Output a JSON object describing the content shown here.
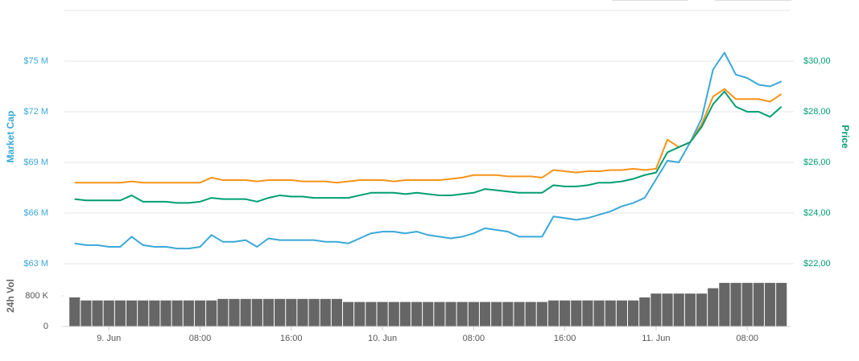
{
  "chart_data": {
    "type": "line",
    "ylabel": "Market Cap",
    "y2label": "Price",
    "x": [
      -3,
      -2,
      -1,
      0,
      1,
      2,
      3,
      4,
      5,
      6,
      7,
      8,
      9,
      10,
      11,
      12,
      13,
      14,
      15,
      16,
      17,
      18,
      19,
      20,
      21,
      22,
      23,
      24,
      25,
      26,
      27,
      28,
      29,
      30,
      31,
      32,
      33,
      34,
      35,
      36,
      37,
      38,
      39,
      40,
      41,
      42,
      43,
      44,
      45,
      46,
      47,
      48,
      49,
      50,
      51,
      52,
      53,
      54,
      55,
      56,
      57,
      58,
      59
    ],
    "xlim": [
      -3.9,
      59.8
    ],
    "xticks": [
      {
        "value": 0,
        "label": "9. Jun"
      },
      {
        "value": 8,
        "label": "08:00"
      },
      {
        "value": 16,
        "label": "16:00"
      },
      {
        "value": 24,
        "label": "10. Jun"
      },
      {
        "value": 32,
        "label": "08:00"
      },
      {
        "value": 40,
        "label": "16:00"
      },
      {
        "value": 48,
        "label": "11. Jun"
      },
      {
        "value": 56,
        "label": "08:00"
      }
    ],
    "ylim": [
      63,
      78
    ],
    "yticks": [
      {
        "value": 63,
        "label": "$63 M"
      },
      {
        "value": 66,
        "label": "$66 M"
      },
      {
        "value": 69,
        "label": "$69 M"
      },
      {
        "value": 72,
        "label": "$72 M"
      },
      {
        "value": 75,
        "label": "$75 M"
      }
    ],
    "y2lim": [
      22,
      32
    ],
    "y2ticks": [
      {
        "value": 22,
        "label": "$22,00"
      },
      {
        "value": 24,
        "label": "$24,00"
      },
      {
        "value": 26,
        "label": "$26,00"
      },
      {
        "value": 28,
        "label": "$28,00"
      },
      {
        "value": 30,
        "label": "$30,00"
      }
    ],
    "grid": true,
    "series": [
      {
        "color": "#3aa8d8",
        "axis": "y",
        "values": [
          64.2,
          64.1,
          64.1,
          64.0,
          64.0,
          64.6,
          64.1,
          64.0,
          64.0,
          63.9,
          63.9,
          64.0,
          64.7,
          64.3,
          64.3,
          64.4,
          64.0,
          64.5,
          64.4,
          64.4,
          64.4,
          64.4,
          64.3,
          64.3,
          64.2,
          64.5,
          64.8,
          64.9,
          64.9,
          64.8,
          64.9,
          64.7,
          64.6,
          64.5,
          64.6,
          64.8,
          65.1,
          65.0,
          64.9,
          64.6,
          64.6,
          64.6,
          65.8,
          65.7,
          65.6,
          65.7,
          65.9,
          66.1,
          66.4,
          66.6,
          66.9,
          68.0,
          69.1,
          69.0,
          70.2,
          71.6,
          74.5,
          75.5,
          74.2,
          74.0,
          73.6,
          73.5,
          73.8
        ]
      },
      {
        "color": "#f7931a",
        "axis": "y2",
        "values": [
          25.2,
          25.2,
          25.2,
          25.2,
          25.2,
          25.25,
          25.2,
          25.2,
          25.2,
          25.2,
          25.2,
          25.2,
          25.4,
          25.3,
          25.3,
          25.3,
          25.25,
          25.3,
          25.3,
          25.3,
          25.25,
          25.25,
          25.25,
          25.2,
          25.25,
          25.3,
          25.3,
          25.3,
          25.25,
          25.3,
          25.3,
          25.3,
          25.3,
          25.35,
          25.4,
          25.5,
          25.5,
          25.5,
          25.45,
          25.45,
          25.45,
          25.4,
          25.7,
          25.65,
          25.6,
          25.65,
          25.65,
          25.7,
          25.7,
          25.75,
          25.7,
          25.75,
          26.9,
          26.6,
          26.8,
          27.5,
          28.6,
          28.9,
          28.5,
          28.5,
          28.5,
          28.4,
          28.7
        ]
      },
      {
        "color": "#009e73",
        "axis": "y2",
        "values": [
          24.55,
          24.5,
          24.5,
          24.5,
          24.5,
          24.7,
          24.45,
          24.45,
          24.45,
          24.4,
          24.4,
          24.45,
          24.6,
          24.55,
          24.55,
          24.55,
          24.45,
          24.6,
          24.7,
          24.65,
          24.65,
          24.6,
          24.6,
          24.6,
          24.6,
          24.7,
          24.8,
          24.8,
          24.8,
          24.75,
          24.8,
          24.75,
          24.7,
          24.7,
          24.75,
          24.8,
          24.95,
          24.9,
          24.85,
          24.8,
          24.8,
          24.8,
          25.1,
          25.05,
          25.05,
          25.1,
          25.2,
          25.2,
          25.25,
          25.35,
          25.5,
          25.6,
          26.4,
          26.6,
          26.8,
          27.4,
          28.3,
          28.8,
          28.2,
          28.0,
          28.0,
          27.8,
          28.2
        ]
      }
    ],
    "volume": {
      "label": "24h Vol",
      "color": "#666666",
      "ylim": [
        0,
        1600000
      ],
      "yticks": [
        0,
        {
          "value": 800000,
          "label": "800 K"
        }
      ],
      "values": [
        760000,
        680000,
        680000,
        680000,
        680000,
        680000,
        680000,
        680000,
        680000,
        680000,
        680000,
        680000,
        680000,
        720000,
        720000,
        720000,
        720000,
        720000,
        720000,
        720000,
        720000,
        720000,
        720000,
        720000,
        640000,
        640000,
        640000,
        640000,
        640000,
        640000,
        640000,
        640000,
        640000,
        640000,
        640000,
        640000,
        640000,
        640000,
        640000,
        640000,
        640000,
        640000,
        680000,
        680000,
        680000,
        680000,
        680000,
        680000,
        680000,
        680000,
        760000,
        860000,
        860000,
        860000,
        860000,
        860000,
        1000000,
        1140000,
        1140000,
        1140000,
        1140000,
        1140000,
        1140000
      ]
    }
  }
}
